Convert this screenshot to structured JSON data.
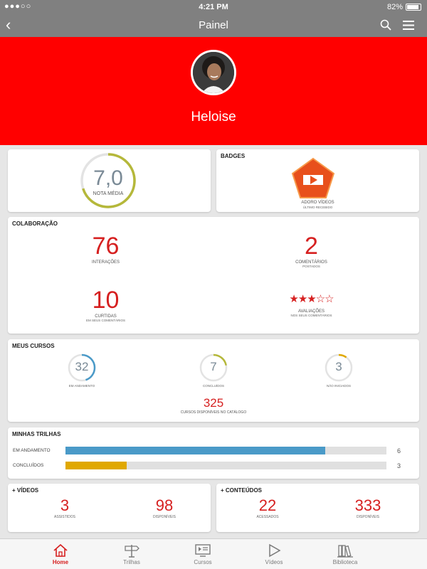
{
  "status": {
    "carrier": "●●●○○",
    "time": "4:21 PM",
    "battery": "82%"
  },
  "nav": {
    "title": "Painel"
  },
  "profile": {
    "name": "Heloise"
  },
  "nota": {
    "value": "7,0",
    "label": "NOTA MÉDIA",
    "fraction": 0.7
  },
  "badges": {
    "title": "BADGES",
    "name": "ADORO VÍDEOS",
    "sub": "ÚLTIMO RECEBIDO"
  },
  "colaboracao": {
    "title": "COLABORAÇÃO",
    "interacoes": {
      "value": "76",
      "label": "INTERAÇÕES"
    },
    "comentarios": {
      "value": "2",
      "label": "COMENTÁRIOS",
      "sub": "POSTADOS"
    },
    "curtidas": {
      "value": "10",
      "label": "CURTIDAS",
      "sub": "EM SEUS COMENTÁRIOS"
    },
    "avaliacoes": {
      "rating": 3,
      "max": 5,
      "label": "AVALIAÇÕES",
      "sub": "NOS SEUS COMENTÁRIOS"
    }
  },
  "cursos": {
    "title": "MEUS CURSOS",
    "andamento": {
      "value": "32",
      "label": "EM ANDAMENTO",
      "fraction": 0.45,
      "color": "#4a9ac8"
    },
    "concluidos": {
      "value": "7",
      "label": "CONCLUÍDOS",
      "fraction": 0.22,
      "color": "#b5b83a"
    },
    "nao_iniciados": {
      "value": "3",
      "label": "NÃO INICIADOS",
      "fraction": 0.1,
      "color": "#e0a800"
    },
    "catalogo": {
      "value": "325",
      "label": "CURSOS DISPONÍVEIS NO CATÁLOGO"
    }
  },
  "trilhas": {
    "title": "MINHAS TRILHAS",
    "rows": [
      {
        "label": "EM ANDAMENTO",
        "value": "6",
        "fraction": 0.81,
        "color": "#4a9ac8"
      },
      {
        "label": "CONCLUÍDOS",
        "value": "3",
        "fraction": 0.19,
        "color": "#e0a800"
      }
    ]
  },
  "videos": {
    "title": "+ VÍDEOS",
    "assistidos": {
      "value": "3",
      "label": "ASSISTIDOS"
    },
    "disponiveis": {
      "value": "98",
      "label": "DISPONÍVEIS"
    }
  },
  "conteudos": {
    "title": "+ CONTEÚDOS",
    "acessados": {
      "value": "22",
      "label": "ACESSADOS"
    },
    "disponiveis": {
      "value": "333",
      "label": "DISPONÍVEIS"
    }
  },
  "tabs": [
    {
      "label": "Home",
      "icon": "home-icon"
    },
    {
      "label": "Trilhas",
      "icon": "signpost-icon"
    },
    {
      "label": "Cursos",
      "icon": "course-icon"
    },
    {
      "label": "Vídeos",
      "icon": "play-icon"
    },
    {
      "label": "Biblioteca",
      "icon": "library-icon"
    }
  ],
  "colors": {
    "brand": "#ff0000",
    "accent_red": "#d62020",
    "nav_gray": "#808080"
  }
}
